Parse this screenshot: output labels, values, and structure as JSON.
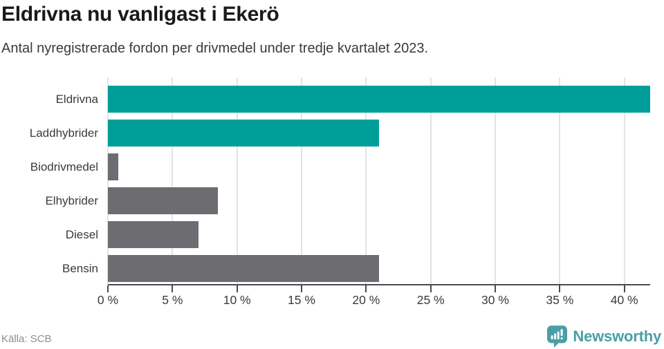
{
  "header": {
    "title": "Eldrivna nu vanligast i Ekerö",
    "subtitle": "Antal nyregistrerade fordon per drivmedel under tredje kvartalet 2023."
  },
  "chart_data": {
    "type": "bar",
    "orientation": "horizontal",
    "title": "Eldrivna nu vanligast i Ekerö",
    "subtitle": "Antal nyregistrerade fordon per drivmedel under tredje kvartalet 2023.",
    "categories": [
      "Eldrivna",
      "Laddhybrider",
      "Biodrivmedel",
      "Elhybrider",
      "Diesel",
      "Bensin"
    ],
    "values": [
      42,
      21,
      0.8,
      8.5,
      7,
      21
    ],
    "unit": "%",
    "bar_colors": [
      "#009e98",
      "#009e98",
      "#6c6c71",
      "#6c6c71",
      "#6c6c71",
      "#6c6c71"
    ],
    "xlim": [
      0,
      42
    ],
    "xticks": [
      0,
      5,
      10,
      15,
      20,
      25,
      30,
      35,
      40
    ],
    "xtick_labels": [
      "0 %",
      "5 %",
      "10 %",
      "15 %",
      "20 %",
      "25 %",
      "30 %",
      "35 %",
      "40 %"
    ],
    "xlabel": "",
    "ylabel": "",
    "grid": true,
    "legend": "none"
  },
  "footer": {
    "source": "Källa: SCB",
    "brand": "Newsworthy"
  },
  "colors": {
    "teal_bar": "#009e98",
    "gray_bar": "#6c6c71",
    "brand_teal": "#4a9fa6",
    "axis": "#4a4a4a",
    "grid": "#e3e3e3",
    "title_text": "#1a1a1a",
    "body_text": "#3a3a3a",
    "muted_text": "#8e8e8e"
  }
}
